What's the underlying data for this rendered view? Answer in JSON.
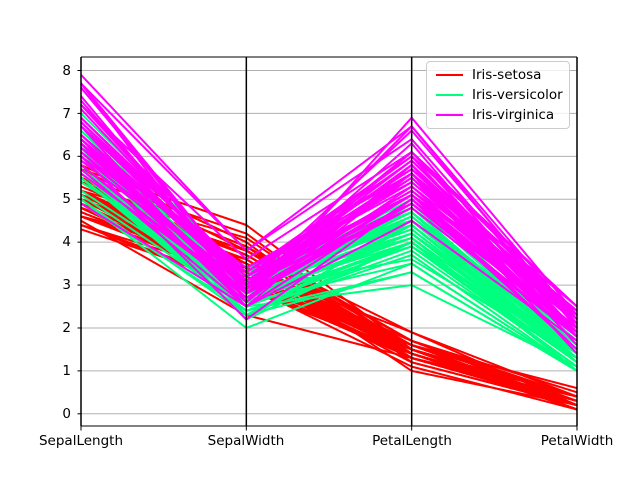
{
  "legend": {
    "entries": [
      {
        "label": "Iris-setosa",
        "color": "#ff0000"
      },
      {
        "label": "Iris-versicolor",
        "color": "#00ff7f"
      },
      {
        "label": "Iris-virginica",
        "color": "#ff00ff"
      }
    ]
  },
  "chart_data": {
    "type": "line",
    "variant": "parallel-coordinates",
    "title": "",
    "columns": [
      "SepalLength",
      "SepalWidth",
      "PetalLength",
      "PetalWidth"
    ],
    "yticks": [
      "0",
      "1",
      "2",
      "3",
      "4",
      "5",
      "6",
      "7",
      "8"
    ],
    "ylim": [
      -0.29,
      8.29
    ],
    "grid": "horizontal",
    "grid_color": "#b0b0b0",
    "axis_line_color": "#000000",
    "legend_position": "upper right",
    "series": [
      {
        "name": "Iris-setosa",
        "color": "#ff0000",
        "rows": [
          [
            5.1,
            3.5,
            1.4,
            0.2
          ],
          [
            4.9,
            3.0,
            1.4,
            0.2
          ],
          [
            4.7,
            3.2,
            1.3,
            0.2
          ],
          [
            4.6,
            3.1,
            1.5,
            0.2
          ],
          [
            5.0,
            3.6,
            1.4,
            0.2
          ],
          [
            5.4,
            3.9,
            1.7,
            0.4
          ],
          [
            4.6,
            3.4,
            1.4,
            0.3
          ],
          [
            5.0,
            3.4,
            1.5,
            0.2
          ],
          [
            4.4,
            2.9,
            1.4,
            0.2
          ],
          [
            4.9,
            3.1,
            1.5,
            0.1
          ],
          [
            5.4,
            3.7,
            1.5,
            0.2
          ],
          [
            4.8,
            3.4,
            1.6,
            0.2
          ],
          [
            4.8,
            3.0,
            1.4,
            0.1
          ],
          [
            4.3,
            3.0,
            1.1,
            0.1
          ],
          [
            5.8,
            4.0,
            1.2,
            0.2
          ],
          [
            5.7,
            4.4,
            1.5,
            0.4
          ],
          [
            5.4,
            3.9,
            1.3,
            0.4
          ],
          [
            5.1,
            3.5,
            1.4,
            0.3
          ],
          [
            5.7,
            3.8,
            1.7,
            0.3
          ],
          [
            5.1,
            3.8,
            1.5,
            0.3
          ],
          [
            5.4,
            3.4,
            1.7,
            0.2
          ],
          [
            5.1,
            3.7,
            1.5,
            0.4
          ],
          [
            4.6,
            3.6,
            1.0,
            0.2
          ],
          [
            5.1,
            3.3,
            1.7,
            0.5
          ],
          [
            4.8,
            3.4,
            1.9,
            0.2
          ],
          [
            5.0,
            3.0,
            1.6,
            0.2
          ],
          [
            5.0,
            3.4,
            1.6,
            0.4
          ],
          [
            5.2,
            3.5,
            1.5,
            0.2
          ],
          [
            5.2,
            3.4,
            1.4,
            0.2
          ],
          [
            4.7,
            3.2,
            1.6,
            0.2
          ],
          [
            4.8,
            3.1,
            1.6,
            0.2
          ],
          [
            5.4,
            3.4,
            1.5,
            0.4
          ],
          [
            5.2,
            4.1,
            1.5,
            0.1
          ],
          [
            5.5,
            4.2,
            1.4,
            0.2
          ],
          [
            4.9,
            3.1,
            1.5,
            0.1
          ],
          [
            5.0,
            3.2,
            1.2,
            0.2
          ],
          [
            5.5,
            3.5,
            1.3,
            0.2
          ],
          [
            4.9,
            3.1,
            1.5,
            0.1
          ],
          [
            4.4,
            3.0,
            1.3,
            0.2
          ],
          [
            5.1,
            3.4,
            1.5,
            0.2
          ],
          [
            5.0,
            3.5,
            1.3,
            0.3
          ],
          [
            4.5,
            2.3,
            1.3,
            0.3
          ],
          [
            4.4,
            3.2,
            1.3,
            0.2
          ],
          [
            5.0,
            3.5,
            1.6,
            0.6
          ],
          [
            5.1,
            3.8,
            1.9,
            0.4
          ],
          [
            4.8,
            3.0,
            1.4,
            0.3
          ],
          [
            5.1,
            3.8,
            1.6,
            0.2
          ],
          [
            4.6,
            3.2,
            1.4,
            0.2
          ],
          [
            5.3,
            3.7,
            1.5,
            0.2
          ],
          [
            5.0,
            3.3,
            1.4,
            0.2
          ]
        ]
      },
      {
        "name": "Iris-versicolor",
        "color": "#00ff7f",
        "rows": [
          [
            7.0,
            3.2,
            4.7,
            1.4
          ],
          [
            6.4,
            3.2,
            4.5,
            1.5
          ],
          [
            6.9,
            3.1,
            4.9,
            1.5
          ],
          [
            5.5,
            2.3,
            4.0,
            1.3
          ],
          [
            6.5,
            2.8,
            4.6,
            1.5
          ],
          [
            5.7,
            2.8,
            4.5,
            1.3
          ],
          [
            6.3,
            3.3,
            4.7,
            1.6
          ],
          [
            4.9,
            2.4,
            3.3,
            1.0
          ],
          [
            6.6,
            2.9,
            4.6,
            1.3
          ],
          [
            5.2,
            2.7,
            3.9,
            1.4
          ],
          [
            5.0,
            2.0,
            3.5,
            1.0
          ],
          [
            5.9,
            3.0,
            4.2,
            1.5
          ],
          [
            6.0,
            2.2,
            4.0,
            1.0
          ],
          [
            6.1,
            2.9,
            4.7,
            1.4
          ],
          [
            5.6,
            2.9,
            3.6,
            1.3
          ],
          [
            6.7,
            3.1,
            4.4,
            1.4
          ],
          [
            5.6,
            3.0,
            4.5,
            1.5
          ],
          [
            5.8,
            2.7,
            4.1,
            1.0
          ],
          [
            6.2,
            2.2,
            4.5,
            1.5
          ],
          [
            5.6,
            2.5,
            3.9,
            1.1
          ],
          [
            5.9,
            3.2,
            4.8,
            1.8
          ],
          [
            6.1,
            2.8,
            4.0,
            1.3
          ],
          [
            6.3,
            2.5,
            4.9,
            1.5
          ],
          [
            6.1,
            2.8,
            4.7,
            1.2
          ],
          [
            6.4,
            2.9,
            4.3,
            1.3
          ],
          [
            6.6,
            3.0,
            4.4,
            1.4
          ],
          [
            6.8,
            2.8,
            4.8,
            1.4
          ],
          [
            6.7,
            3.0,
            5.0,
            1.7
          ],
          [
            6.0,
            2.9,
            4.5,
            1.5
          ],
          [
            5.7,
            2.6,
            3.5,
            1.0
          ],
          [
            5.5,
            2.4,
            3.8,
            1.1
          ],
          [
            5.5,
            2.4,
            3.7,
            1.0
          ],
          [
            5.8,
            2.7,
            3.9,
            1.2
          ],
          [
            6.0,
            2.7,
            5.1,
            1.6
          ],
          [
            5.4,
            3.0,
            4.5,
            1.5
          ],
          [
            6.0,
            3.4,
            4.5,
            1.6
          ],
          [
            6.7,
            3.1,
            4.7,
            1.5
          ],
          [
            6.3,
            2.3,
            4.4,
            1.3
          ],
          [
            5.6,
            3.0,
            4.1,
            1.3
          ],
          [
            5.5,
            2.5,
            4.0,
            1.3
          ],
          [
            5.5,
            2.6,
            4.4,
            1.2
          ],
          [
            6.1,
            3.0,
            4.6,
            1.4
          ],
          [
            5.8,
            2.6,
            4.0,
            1.2
          ],
          [
            5.0,
            2.3,
            3.3,
            1.0
          ],
          [
            5.6,
            2.7,
            4.2,
            1.3
          ],
          [
            5.7,
            3.0,
            4.2,
            1.2
          ],
          [
            5.7,
            2.9,
            4.2,
            1.3
          ],
          [
            6.2,
            2.9,
            4.3,
            1.3
          ],
          [
            5.1,
            2.5,
            3.0,
            1.1
          ],
          [
            5.7,
            2.8,
            4.1,
            1.3
          ]
        ]
      },
      {
        "name": "Iris-virginica",
        "color": "#ff00ff",
        "rows": [
          [
            6.3,
            3.3,
            6.0,
            2.5
          ],
          [
            5.8,
            2.7,
            5.1,
            1.9
          ],
          [
            7.1,
            3.0,
            5.9,
            2.1
          ],
          [
            6.3,
            2.9,
            5.6,
            1.8
          ],
          [
            6.5,
            3.0,
            5.8,
            2.2
          ],
          [
            7.6,
            3.0,
            6.6,
            2.1
          ],
          [
            4.9,
            2.5,
            4.5,
            1.7
          ],
          [
            7.3,
            2.9,
            6.3,
            1.8
          ],
          [
            6.7,
            2.5,
            5.8,
            1.8
          ],
          [
            7.2,
            3.6,
            6.1,
            2.5
          ],
          [
            6.5,
            3.2,
            5.1,
            2.0
          ],
          [
            6.4,
            2.7,
            5.3,
            1.9
          ],
          [
            6.8,
            3.0,
            5.5,
            2.1
          ],
          [
            5.7,
            2.5,
            5.0,
            2.0
          ],
          [
            5.8,
            2.8,
            5.1,
            2.4
          ],
          [
            6.4,
            3.2,
            5.3,
            2.3
          ],
          [
            6.5,
            3.0,
            5.5,
            1.8
          ],
          [
            7.7,
            3.8,
            6.7,
            2.2
          ],
          [
            7.7,
            2.6,
            6.9,
            2.3
          ],
          [
            6.0,
            2.2,
            5.0,
            1.5
          ],
          [
            6.9,
            3.2,
            5.7,
            2.3
          ],
          [
            5.6,
            2.8,
            4.9,
            2.0
          ],
          [
            7.7,
            2.8,
            6.7,
            2.0
          ],
          [
            6.3,
            2.7,
            4.9,
            1.8
          ],
          [
            6.7,
            3.3,
            5.7,
            2.1
          ],
          [
            7.2,
            3.2,
            6.0,
            1.8
          ],
          [
            6.2,
            2.8,
            4.8,
            1.8
          ],
          [
            6.1,
            3.0,
            4.9,
            1.8
          ],
          [
            6.4,
            2.8,
            5.6,
            2.1
          ],
          [
            7.2,
            3.0,
            5.8,
            1.6
          ],
          [
            7.4,
            2.8,
            6.1,
            1.9
          ],
          [
            7.9,
            3.8,
            6.4,
            2.0
          ],
          [
            6.4,
            2.8,
            5.6,
            2.2
          ],
          [
            6.3,
            2.8,
            5.1,
            1.5
          ],
          [
            6.1,
            2.6,
            5.6,
            1.4
          ],
          [
            7.7,
            3.0,
            6.1,
            2.3
          ],
          [
            6.3,
            3.4,
            5.6,
            2.4
          ],
          [
            6.4,
            3.1,
            5.5,
            1.8
          ],
          [
            6.0,
            3.0,
            4.8,
            1.8
          ],
          [
            6.9,
            3.1,
            5.4,
            2.1
          ],
          [
            6.7,
            3.1,
            5.6,
            2.4
          ],
          [
            6.9,
            3.1,
            5.1,
            2.3
          ],
          [
            5.8,
            2.7,
            5.1,
            1.9
          ],
          [
            6.8,
            3.2,
            5.9,
            2.3
          ],
          [
            6.7,
            3.3,
            5.7,
            2.5
          ],
          [
            6.7,
            3.0,
            5.2,
            2.3
          ],
          [
            6.3,
            2.5,
            5.0,
            1.9
          ],
          [
            6.5,
            3.0,
            5.2,
            2.0
          ],
          [
            6.2,
            3.4,
            5.4,
            2.3
          ],
          [
            5.9,
            3.0,
            5.1,
            1.8
          ]
        ]
      }
    ]
  }
}
